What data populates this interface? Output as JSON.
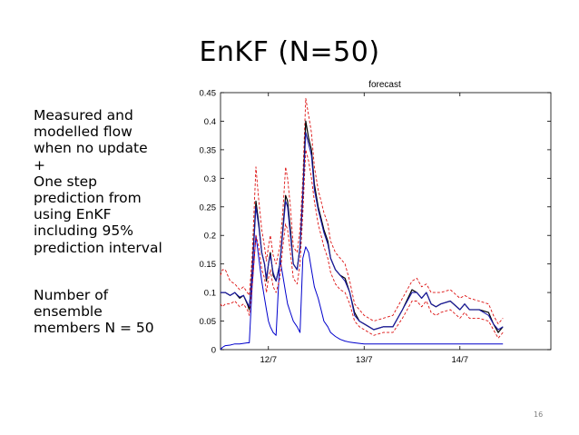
{
  "slide": {
    "title": "EnKF (N=50)",
    "description": [
      "Measured and",
      "modelled flow",
      "when no update",
      "+",
      "One step",
      "prediction from",
      "using EnKF",
      "including 95%",
      "prediction interval"
    ],
    "note": [
      "Number of",
      "ensemble",
      "members N = 50"
    ],
    "page_number": "16"
  },
  "chart_data": {
    "type": "line",
    "title": "forecast",
    "xlabel": "",
    "ylabel": "",
    "xlim": [
      11.5,
      14.95
    ],
    "ylim": [
      0,
      0.45
    ],
    "x_ticks": [
      12,
      13,
      14
    ],
    "x_tick_labels": [
      "12/7",
      "13/7",
      "14/7"
    ],
    "y_ticks": [
      0,
      0.05,
      0.1,
      0.15,
      0.2,
      0.25,
      0.3,
      0.35,
      0.4,
      0.45
    ],
    "y_tick_labels": [
      "0",
      "0.05",
      "0.1",
      "0.15",
      "0.2",
      "0.25",
      "0.3",
      "0.35",
      "0.4",
      "0.45"
    ],
    "grid": false,
    "colors": {
      "measured": "#000000",
      "prediction": "#1a1aa8",
      "no_update": "#0000cc",
      "interval": "#dd1111"
    },
    "x": [
      11.5,
      11.52,
      11.55,
      11.6,
      11.65,
      11.7,
      11.74,
      11.78,
      11.8,
      11.83,
      11.87,
      11.9,
      11.93,
      11.96,
      11.98,
      12.0,
      12.02,
      12.05,
      12.08,
      12.12,
      12.15,
      12.18,
      12.2,
      12.23,
      12.26,
      12.3,
      12.33,
      12.36,
      12.39,
      12.42,
      12.45,
      12.48,
      12.52,
      12.55,
      12.58,
      12.62,
      12.65,
      12.7,
      12.75,
      12.8,
      12.85,
      12.9,
      12.95,
      13.0,
      13.05,
      13.1,
      13.2,
      13.3,
      13.4,
      13.5,
      13.55,
      13.6,
      13.65,
      13.7,
      13.75,
      13.8,
      13.9,
      14.0,
      14.05,
      14.1,
      14.2,
      14.3,
      14.35,
      14.4,
      14.45
    ],
    "series": [
      {
        "key": "measured",
        "values": [
          0.1,
          0.1,
          0.1,
          0.095,
          0.1,
          0.09,
          0.095,
          0.08,
          0.07,
          0.135,
          0.26,
          0.22,
          0.17,
          0.15,
          0.12,
          0.15,
          0.17,
          0.13,
          0.12,
          0.15,
          0.21,
          0.27,
          0.26,
          0.21,
          0.15,
          0.14,
          0.18,
          0.27,
          0.4,
          0.37,
          0.35,
          0.29,
          0.25,
          0.23,
          0.21,
          0.19,
          0.16,
          0.14,
          0.13,
          0.125,
          0.1,
          0.065,
          0.05,
          0.045,
          0.04,
          0.035,
          0.04,
          0.04,
          0.07,
          0.105,
          0.1,
          0.09,
          0.1,
          0.08,
          0.075,
          0.08,
          0.085,
          0.07,
          0.08,
          0.07,
          0.07,
          0.065,
          0.045,
          0.03,
          0.04
        ]
      },
      {
        "key": "prediction",
        "values": [
          0.1,
          0.1,
          0.1,
          0.095,
          0.1,
          0.092,
          0.095,
          0.082,
          0.075,
          0.13,
          0.25,
          0.215,
          0.17,
          0.15,
          0.125,
          0.15,
          0.165,
          0.135,
          0.12,
          0.15,
          0.205,
          0.26,
          0.25,
          0.2,
          0.15,
          0.14,
          0.18,
          0.27,
          0.38,
          0.36,
          0.34,
          0.28,
          0.245,
          0.225,
          0.205,
          0.185,
          0.16,
          0.14,
          0.13,
          0.12,
          0.1,
          0.06,
          0.05,
          0.045,
          0.04,
          0.035,
          0.04,
          0.04,
          0.07,
          0.1,
          0.1,
          0.09,
          0.1,
          0.08,
          0.075,
          0.08,
          0.085,
          0.07,
          0.08,
          0.07,
          0.07,
          0.06,
          0.045,
          0.035,
          0.04
        ]
      },
      {
        "key": "no_update",
        "values": [
          0.0,
          0.004,
          0.007,
          0.008,
          0.01,
          0.01,
          0.011,
          0.012,
          0.012,
          0.11,
          0.2,
          0.16,
          0.12,
          0.09,
          0.07,
          0.05,
          0.04,
          0.03,
          0.025,
          0.16,
          0.13,
          0.1,
          0.08,
          0.065,
          0.05,
          0.04,
          0.03,
          0.16,
          0.18,
          0.17,
          0.14,
          0.11,
          0.09,
          0.07,
          0.05,
          0.04,
          0.03,
          0.023,
          0.018,
          0.015,
          0.013,
          0.012,
          0.011,
          0.01,
          0.01,
          0.01,
          0.01,
          0.01,
          0.01,
          0.01,
          0.01,
          0.01,
          0.01,
          0.01,
          0.01,
          0.01,
          0.01,
          0.01,
          0.01,
          0.01,
          0.01,
          0.01,
          0.01,
          0.01,
          0.01
        ]
      },
      {
        "key": "interval",
        "values": [
          0.13,
          0.14,
          0.14,
          0.12,
          0.115,
          0.105,
          0.11,
          0.1,
          0.095,
          0.16,
          0.32,
          0.26,
          0.21,
          0.18,
          0.155,
          0.18,
          0.2,
          0.165,
          0.15,
          0.18,
          0.24,
          0.32,
          0.3,
          0.25,
          0.18,
          0.17,
          0.21,
          0.3,
          0.44,
          0.41,
          0.38,
          0.32,
          0.28,
          0.26,
          0.24,
          0.22,
          0.19,
          0.17,
          0.16,
          0.15,
          0.12,
          0.08,
          0.07,
          0.06,
          0.055,
          0.05,
          0.055,
          0.06,
          0.09,
          0.12,
          0.125,
          0.11,
          0.115,
          0.1,
          0.1,
          0.1,
          0.105,
          0.09,
          0.095,
          0.09,
          0.085,
          0.08,
          0.06,
          0.045,
          0.055
        ]
      },
      {
        "key": "interval",
        "values": [
          0.08,
          0.075,
          0.08,
          0.08,
          0.085,
          0.075,
          0.08,
          0.07,
          0.06,
          0.11,
          0.2,
          0.18,
          0.14,
          0.125,
          0.1,
          0.125,
          0.14,
          0.11,
          0.1,
          0.125,
          0.18,
          0.22,
          0.21,
          0.17,
          0.125,
          0.115,
          0.15,
          0.24,
          0.35,
          0.33,
          0.3,
          0.26,
          0.22,
          0.2,
          0.18,
          0.16,
          0.135,
          0.115,
          0.105,
          0.1,
          0.08,
          0.05,
          0.04,
          0.035,
          0.03,
          0.025,
          0.03,
          0.03,
          0.055,
          0.085,
          0.085,
          0.075,
          0.085,
          0.065,
          0.06,
          0.065,
          0.07,
          0.055,
          0.065,
          0.055,
          0.055,
          0.05,
          0.035,
          0.02,
          0.03
        ]
      }
    ]
  }
}
